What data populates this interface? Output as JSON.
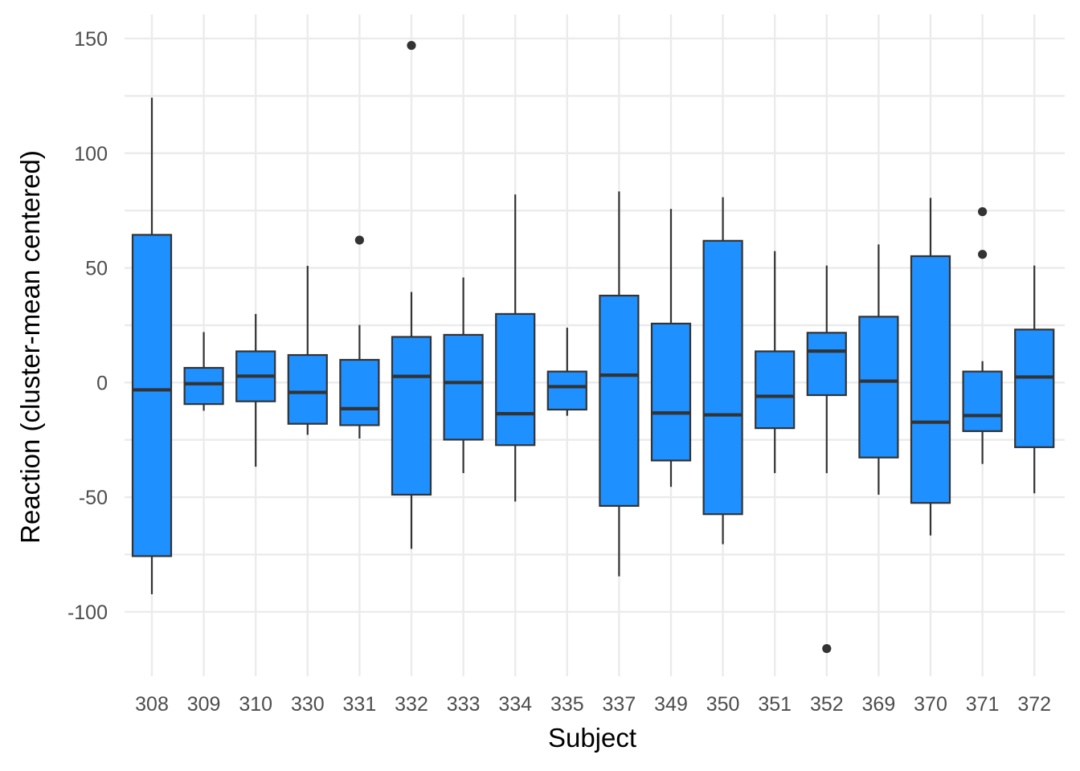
{
  "chart_data": {
    "type": "box",
    "xlabel": "Subject",
    "ylabel": "Reaction (cluster-mean centered)",
    "categories": [
      "308",
      "309",
      "310",
      "330",
      "331",
      "332",
      "333",
      "334",
      "335",
      "337",
      "349",
      "350",
      "351",
      "352",
      "369",
      "370",
      "371",
      "372"
    ],
    "ylim": [
      -129,
      160
    ],
    "yticks": [
      -100,
      -50,
      0,
      50,
      100,
      150
    ],
    "grid": true,
    "fill_color": "#1E90FF",
    "line_color": "#333333",
    "boxes": [
      {
        "category": "308",
        "min": -92.3,
        "q1": -75.7,
        "median": -3.2,
        "q3": 64.4,
        "max": 124.2,
        "outliers": []
      },
      {
        "category": "309",
        "min": -12.3,
        "q1": -9.4,
        "median": -0.5,
        "q3": 6.4,
        "max": 22.0,
        "outliers": []
      },
      {
        "category": "310",
        "min": -36.7,
        "q1": -8.2,
        "median": 2.8,
        "q3": 13.6,
        "max": 29.9,
        "outliers": []
      },
      {
        "category": "330",
        "min": -22.8,
        "q1": -18.0,
        "median": -4.3,
        "q3": 12.0,
        "max": 50.9,
        "outliers": []
      },
      {
        "category": "331",
        "min": -24.4,
        "q1": -18.6,
        "median": -11.4,
        "q3": 9.9,
        "max": 25.1,
        "outliers": [
          62.1
        ]
      },
      {
        "category": "332",
        "min": -72.5,
        "q1": -48.9,
        "median": 2.7,
        "q3": 19.9,
        "max": 39.5,
        "outliers": [
          147.0
        ]
      },
      {
        "category": "333",
        "min": -39.5,
        "q1": -24.9,
        "median": 0.0,
        "q3": 20.8,
        "max": 45.8,
        "outliers": []
      },
      {
        "category": "334",
        "min": -51.9,
        "q1": -27.3,
        "median": -13.6,
        "q3": 29.9,
        "max": 82.0,
        "outliers": []
      },
      {
        "category": "335",
        "min": -14.5,
        "q1": -11.8,
        "median": -1.8,
        "q3": 4.8,
        "max": 23.9,
        "outliers": []
      },
      {
        "category": "337",
        "min": -84.5,
        "q1": -53.8,
        "median": 3.2,
        "q3": 37.9,
        "max": 83.3,
        "outliers": []
      },
      {
        "category": "349",
        "min": -45.5,
        "q1": -34.0,
        "median": -13.3,
        "q3": 25.7,
        "max": 75.7,
        "outliers": []
      },
      {
        "category": "350",
        "min": -70.5,
        "q1": -57.4,
        "median": -14.1,
        "q3": 61.8,
        "max": 80.8,
        "outliers": []
      },
      {
        "category": "351",
        "min": -39.5,
        "q1": -19.9,
        "median": -6.0,
        "q3": 13.6,
        "max": 57.3,
        "outliers": []
      },
      {
        "category": "352",
        "min": -39.5,
        "q1": -5.5,
        "median": 13.7,
        "q3": 21.7,
        "max": 51.0,
        "outliers": [
          -116.0
        ]
      },
      {
        "category": "369",
        "min": -48.9,
        "q1": -32.7,
        "median": 0.6,
        "q3": 28.7,
        "max": 60.2,
        "outliers": []
      },
      {
        "category": "370",
        "min": -66.7,
        "q1": -52.5,
        "median": -17.3,
        "q3": 55.1,
        "max": 80.5,
        "outliers": []
      },
      {
        "category": "371",
        "min": -35.5,
        "q1": -21.2,
        "median": -14.4,
        "q3": 4.8,
        "max": 9.3,
        "outliers": [
          74.5,
          55.9
        ]
      },
      {
        "category": "372",
        "min": -48.3,
        "q1": -28.2,
        "median": 2.4,
        "q3": 23.1,
        "max": 51.0,
        "outliers": []
      }
    ]
  }
}
